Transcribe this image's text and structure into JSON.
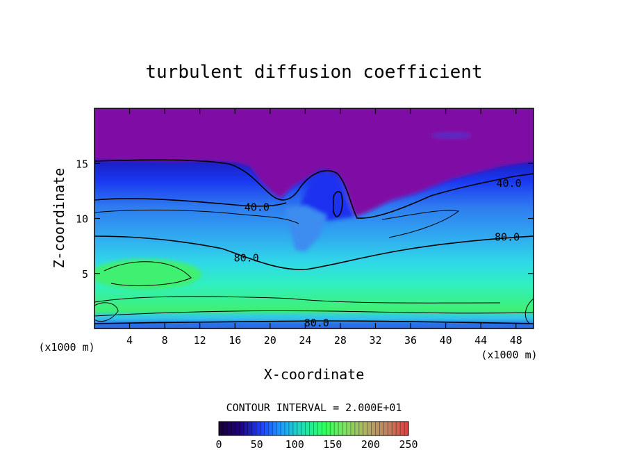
{
  "chart_data": {
    "type": "heatmap",
    "title": "turbulent diffusion coefficient",
    "xlabel": "X-coordinate",
    "ylabel": "Z-coordinate",
    "x_unit_left": "(x1000 m)",
    "x_unit_right": "(x1000 m)",
    "xlim": [
      0,
      50
    ],
    "ylim": [
      0,
      20
    ],
    "x_ticks": [
      4,
      8,
      12,
      16,
      20,
      24,
      28,
      32,
      36,
      40,
      44,
      48
    ],
    "y_ticks": [
      5,
      10,
      15
    ],
    "contour_interval_label": "CONTOUR INTERVAL = 2.000E+01",
    "contour_labels": [
      {
        "text": "40.0",
        "x": 18.5,
        "z": 11.0
      },
      {
        "text": "40.0",
        "x": 47.2,
        "z": 13.2
      },
      {
        "text": "80.0",
        "x": 17.3,
        "z": 6.4
      },
      {
        "text": "80.0",
        "x": 47.0,
        "z": 8.3
      },
      {
        "text": "80.0",
        "x": 25.3,
        "z": 0.5
      }
    ],
    "colorbar": {
      "range": [
        0,
        250
      ],
      "ticks": [
        0,
        50,
        100,
        150,
        200,
        250
      ],
      "colors": [
        "#1a0033",
        "#1e0080",
        "#1e40ff",
        "#1ea0ff",
        "#20e0b0",
        "#30ff60",
        "#80e060",
        "#b0b060",
        "#c08060",
        "#e04040"
      ]
    },
    "colors": {
      "top": "#7f0aa5",
      "deep_blue": "#1a30f0",
      "mid_blue": "#2f7cf0",
      "light_blue": "#30a8f0",
      "cyan": "#30d8e8",
      "aqua": "#30f0c0",
      "green": "#40f070"
    }
  }
}
